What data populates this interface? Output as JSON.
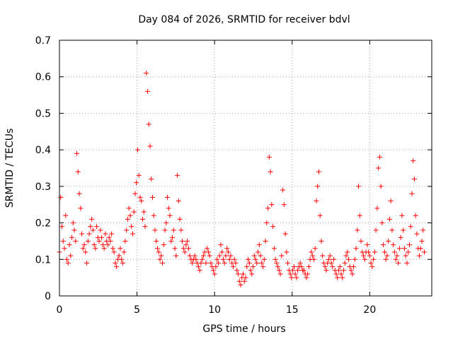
{
  "chart_data": {
    "type": "scatter",
    "title": "Day 084 of 2026, SRMTID for receiver bdvl",
    "xlabel": "GPS time / hours",
    "ylabel": "SRMTID / TECUs",
    "xlim": [
      0,
      24
    ],
    "ylim": [
      0,
      0.7
    ],
    "xticks": [
      0,
      5,
      10,
      15,
      20
    ],
    "xtick_labels": [
      "0",
      "5",
      "10",
      "15",
      "20"
    ],
    "yticks": [
      0,
      0.1,
      0.2,
      0.3,
      0.4,
      0.5,
      0.6,
      0.7
    ],
    "ytick_labels": [
      "0",
      "0.1",
      "0.2",
      "0.3",
      "0.4",
      "0.5",
      "0.6",
      "0.7"
    ],
    "grid": true,
    "marker": "+",
    "series": [
      {
        "name": "SRMTID",
        "color": "#ff0000",
        "x_start": 0.0,
        "x_step": 0.08,
        "values": [
          0.12,
          0.27,
          0.19,
          0.15,
          0.13,
          0.22,
          0.1,
          0.09,
          0.14,
          0.11,
          0.16,
          0.2,
          0.18,
          0.15,
          0.39,
          0.34,
          0.28,
          0.24,
          0.17,
          0.13,
          0.14,
          0.12,
          0.09,
          0.15,
          0.17,
          0.19,
          0.21,
          0.18,
          0.14,
          0.13,
          0.19,
          0.16,
          0.15,
          0.18,
          0.16,
          0.14,
          0.13,
          0.17,
          0.15,
          0.14,
          0.16,
          0.15,
          0.17,
          0.13,
          0.12,
          0.09,
          0.08,
          0.1,
          0.11,
          0.13,
          0.1,
          0.09,
          0.12,
          0.15,
          0.18,
          0.21,
          0.24,
          0.22,
          0.19,
          0.17,
          0.23,
          0.28,
          0.31,
          0.4,
          0.33,
          0.27,
          0.26,
          0.21,
          0.23,
          0.19,
          0.61,
          0.56,
          0.47,
          0.41,
          0.32,
          0.27,
          0.22,
          0.18,
          0.15,
          0.13,
          0.12,
          0.1,
          0.11,
          0.09,
          0.14,
          0.18,
          0.2,
          0.27,
          0.24,
          0.22,
          0.15,
          0.16,
          0.18,
          0.13,
          0.11,
          0.33,
          0.26,
          0.21,
          0.18,
          0.15,
          0.13,
          0.12,
          0.14,
          0.15,
          0.13,
          0.11,
          0.1,
          0.09,
          0.1,
          0.11,
          0.1,
          0.09,
          0.08,
          0.07,
          0.09,
          0.1,
          0.11,
          0.12,
          0.09,
          0.13,
          0.12,
          0.11,
          0.09,
          0.08,
          0.07,
          0.06,
          0.08,
          0.1,
          0.09,
          0.11,
          0.14,
          0.12,
          0.1,
          0.09,
          0.11,
          0.13,
          0.12,
          0.1,
          0.11,
          0.09,
          0.08,
          0.1,
          0.09,
          0.07,
          0.06,
          0.04,
          0.03,
          0.05,
          0.06,
          0.04,
          0.05,
          0.08,
          0.1,
          0.09,
          0.07,
          0.06,
          0.08,
          0.11,
          0.1,
          0.09,
          0.12,
          0.14,
          0.11,
          0.09,
          0.08,
          0.1,
          0.15,
          0.2,
          0.24,
          0.38,
          0.34,
          0.25,
          0.19,
          0.13,
          0.1,
          0.09,
          0.08,
          0.07,
          0.06,
          0.11,
          0.29,
          0.25,
          0.17,
          0.12,
          0.09,
          0.07,
          0.06,
          0.05,
          0.07,
          0.08,
          0.06,
          0.05,
          0.07,
          0.08,
          0.09,
          0.08,
          0.07,
          0.07,
          0.06,
          0.05,
          0.06,
          0.08,
          0.1,
          0.12,
          0.11,
          0.1,
          0.13,
          0.26,
          0.3,
          0.34,
          0.22,
          0.15,
          0.11,
          0.09,
          0.08,
          0.07,
          0.09,
          0.1,
          0.11,
          0.09,
          0.08,
          0.1,
          0.07,
          0.06,
          0.05,
          0.07,
          0.08,
          0.06,
          0.05,
          0.07,
          0.09,
          0.11,
          0.12,
          0.1,
          0.08,
          0.07,
          0.06,
          0.08,
          0.1,
          0.13,
          0.18,
          0.3,
          0.22,
          0.15,
          0.12,
          0.11,
          0.1,
          0.12,
          0.14,
          0.12,
          0.11,
          0.09,
          0.08,
          0.1,
          0.12,
          0.18,
          0.24,
          0.35,
          0.38,
          0.3,
          0.2,
          0.14,
          0.12,
          0.1,
          0.11,
          0.15,
          0.21,
          0.26,
          0.18,
          0.14,
          0.12,
          0.1,
          0.11,
          0.09,
          0.13,
          0.16,
          0.22,
          0.18,
          0.13,
          0.11,
          0.09,
          0.12,
          0.14,
          0.19,
          0.28,
          0.37,
          0.32,
          0.22,
          0.17,
          0.13,
          0.11,
          0.13,
          0.15,
          0.18,
          0.12
        ]
      }
    ]
  }
}
